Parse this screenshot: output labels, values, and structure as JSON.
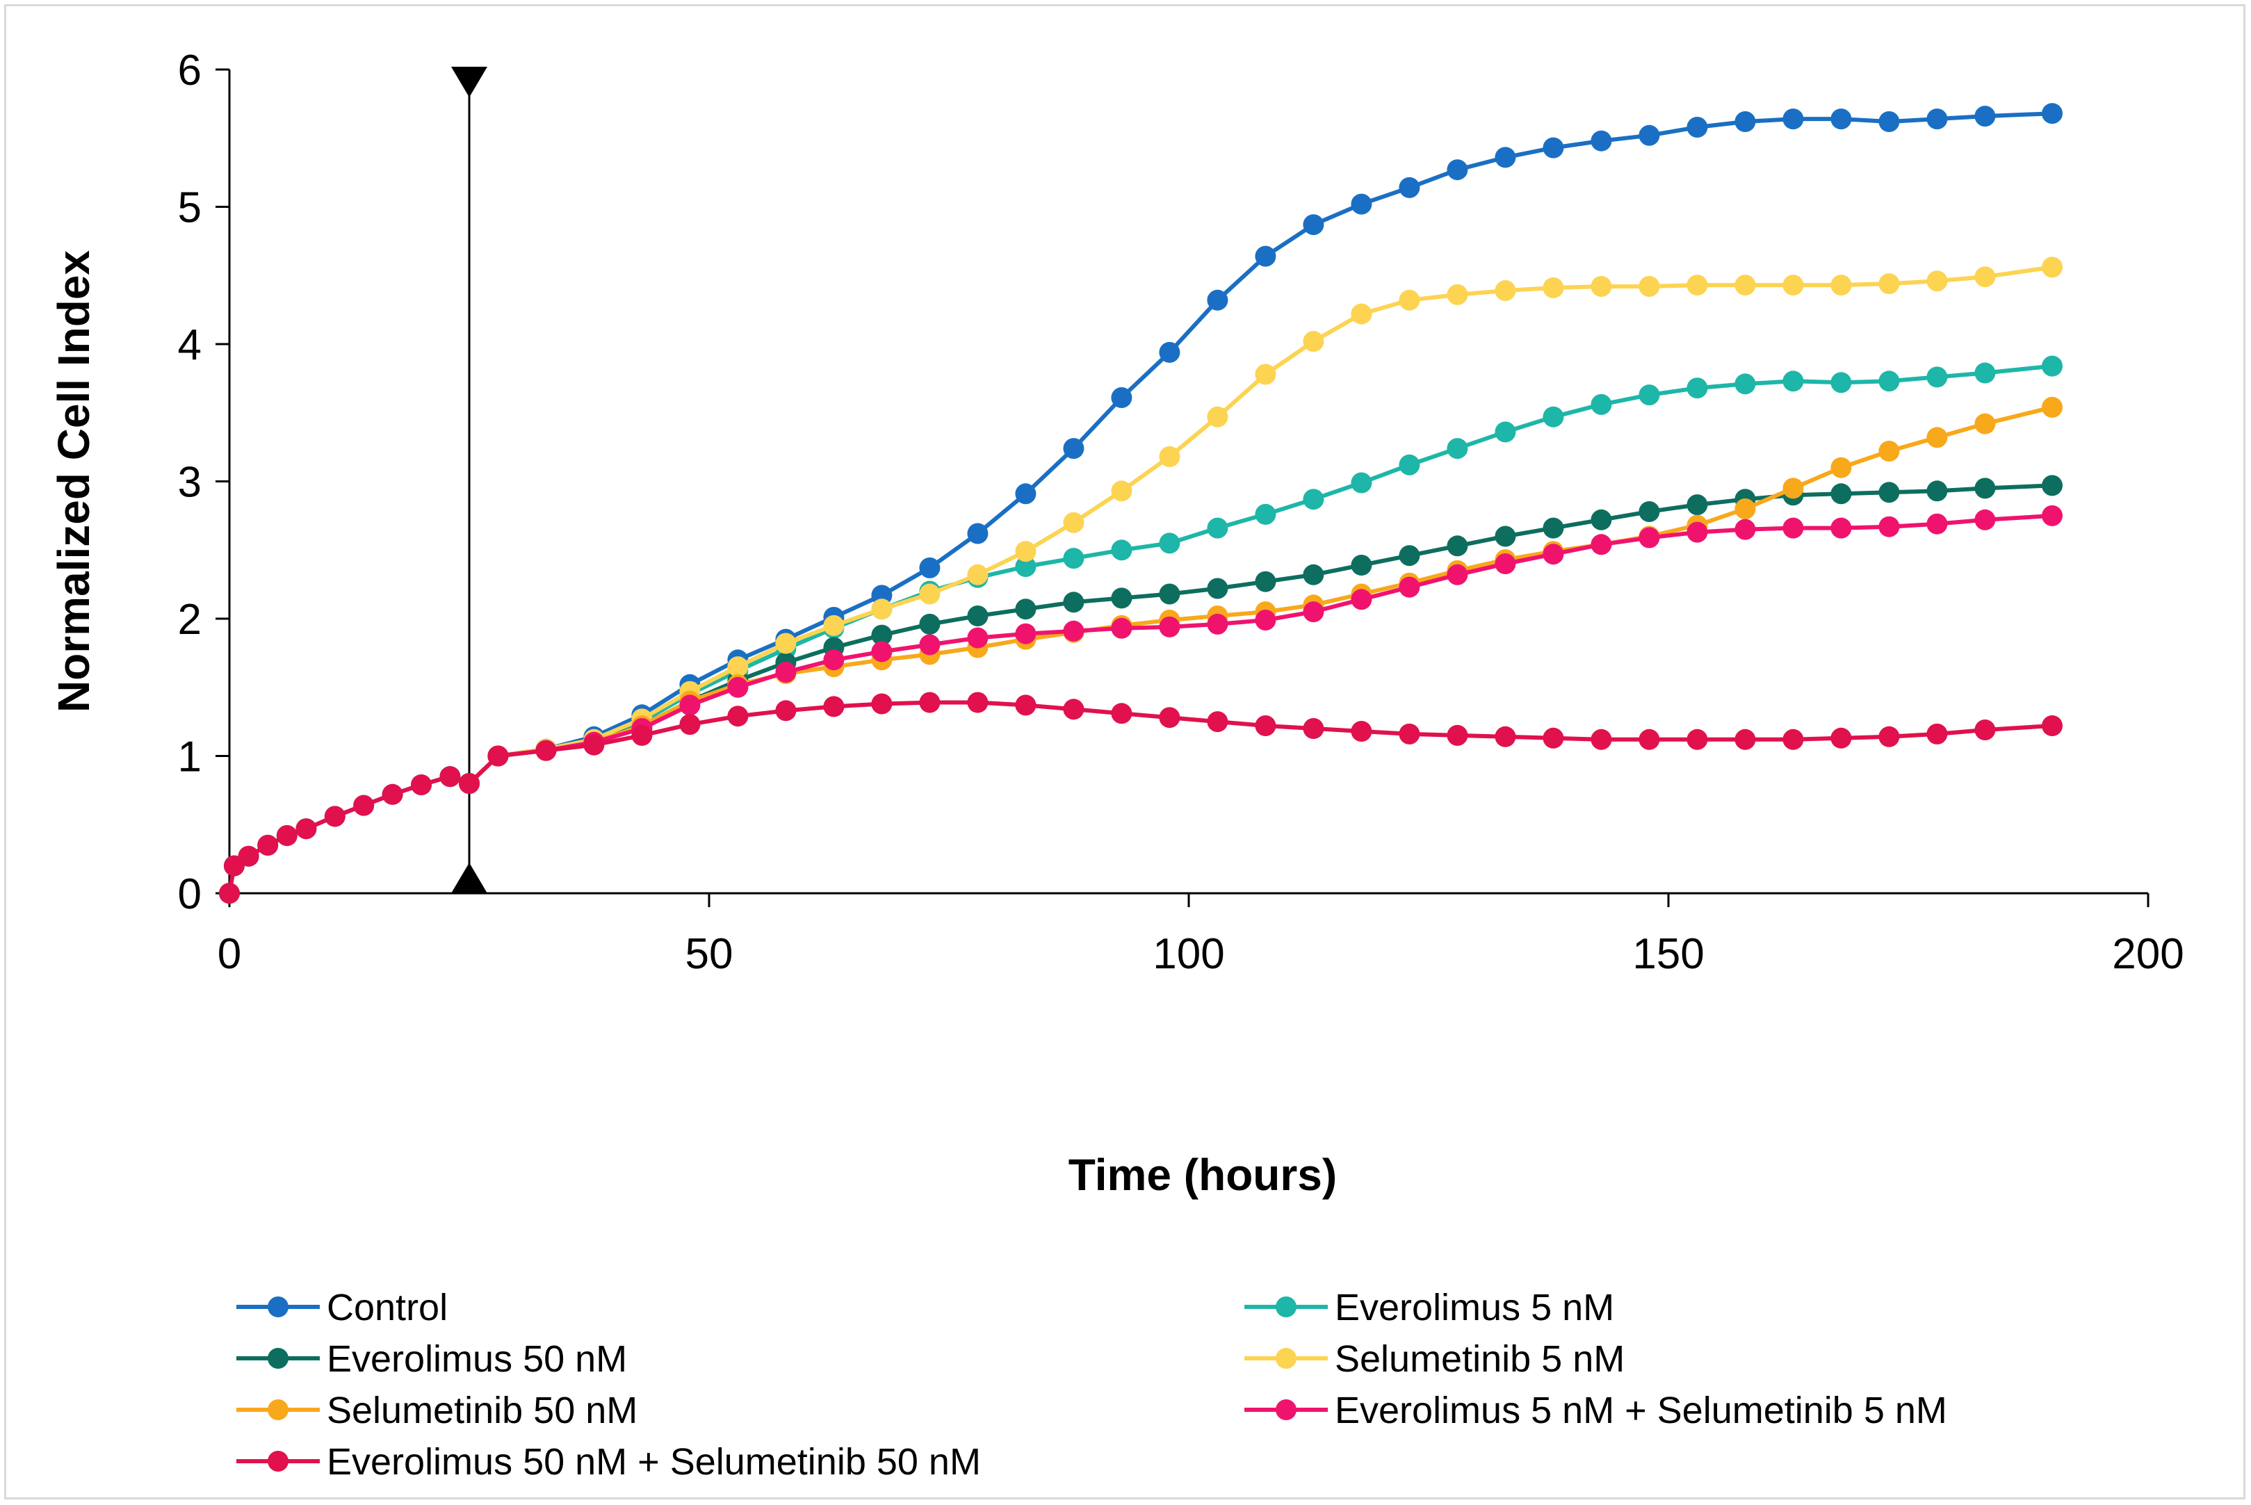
{
  "chart_data": {
    "type": "line",
    "title": "",
    "xlabel": "Time (hours)",
    "ylabel": "Normalized Cell Index",
    "xlim": [
      0,
      200
    ],
    "ylim": [
      0,
      6
    ],
    "xticks": [
      "0",
      "50",
      "100",
      "150",
      "200"
    ],
    "yticks": [
      "0",
      "1",
      "2",
      "3",
      "4",
      "5",
      "6"
    ],
    "xtick_values": [
      0,
      50,
      100,
      150,
      200
    ],
    "ytick_values": [
      0,
      1,
      2,
      3,
      4,
      5,
      6
    ],
    "grid": false,
    "legend_position": "bottom",
    "treatment_marker": {
      "x": 25,
      "label": ""
    },
    "series": [
      {
        "name": "Control",
        "color": "#1a6fc4",
        "points": [
          [
            0,
            0
          ],
          [
            0.5,
            0.2
          ],
          [
            2,
            0.27
          ],
          [
            4,
            0.35
          ],
          [
            6,
            0.42
          ],
          [
            8,
            0.47
          ],
          [
            11,
            0.56
          ],
          [
            14,
            0.64
          ],
          [
            17,
            0.72
          ],
          [
            20,
            0.79
          ],
          [
            23,
            0.85
          ],
          [
            25,
            0.8
          ],
          [
            28,
            1.0
          ],
          [
            33,
            1.05
          ],
          [
            38,
            1.14
          ],
          [
            43,
            1.3
          ],
          [
            48,
            1.52
          ],
          [
            53,
            1.7
          ],
          [
            58,
            1.85
          ],
          [
            63,
            2.01
          ],
          [
            68,
            2.17
          ],
          [
            73,
            2.37
          ],
          [
            78,
            2.62
          ],
          [
            83,
            2.91
          ],
          [
            88,
            3.24
          ],
          [
            93,
            3.61
          ],
          [
            98,
            3.94
          ],
          [
            103,
            4.32
          ],
          [
            108,
            4.64
          ],
          [
            113,
            4.87
          ],
          [
            118,
            5.02
          ],
          [
            123,
            5.14
          ],
          [
            128,
            5.27
          ],
          [
            133,
            5.36
          ],
          [
            138,
            5.43
          ],
          [
            143,
            5.48
          ],
          [
            148,
            5.52
          ],
          [
            153,
            5.58
          ],
          [
            158,
            5.62
          ],
          [
            163,
            5.64
          ],
          [
            168,
            5.64
          ],
          [
            173,
            5.62
          ],
          [
            178,
            5.64
          ],
          [
            183,
            5.66
          ],
          [
            190,
            5.68
          ]
        ]
      },
      {
        "name": "Everolimus 5 nM",
        "color": "#1db6a8",
        "points": [
          [
            25,
            0.8
          ],
          [
            28,
            1.0
          ],
          [
            33,
            1.05
          ],
          [
            38,
            1.12
          ],
          [
            43,
            1.25
          ],
          [
            48,
            1.45
          ],
          [
            53,
            1.62
          ],
          [
            58,
            1.78
          ],
          [
            63,
            1.93
          ],
          [
            68,
            2.07
          ],
          [
            73,
            2.2
          ],
          [
            78,
            2.3
          ],
          [
            83,
            2.38
          ],
          [
            88,
            2.44
          ],
          [
            93,
            2.5
          ],
          [
            98,
            2.55
          ],
          [
            103,
            2.66
          ],
          [
            108,
            2.76
          ],
          [
            113,
            2.87
          ],
          [
            118,
            2.99
          ],
          [
            123,
            3.12
          ],
          [
            128,
            3.24
          ],
          [
            133,
            3.36
          ],
          [
            138,
            3.47
          ],
          [
            143,
            3.56
          ],
          [
            148,
            3.63
          ],
          [
            153,
            3.68
          ],
          [
            158,
            3.71
          ],
          [
            163,
            3.73
          ],
          [
            168,
            3.72
          ],
          [
            173,
            3.73
          ],
          [
            178,
            3.76
          ],
          [
            183,
            3.79
          ],
          [
            190,
            3.84
          ]
        ]
      },
      {
        "name": "Everolimus 50 nM",
        "color": "#0d6e5f",
        "points": [
          [
            25,
            0.8
          ],
          [
            28,
            1.0
          ],
          [
            33,
            1.04
          ],
          [
            38,
            1.11
          ],
          [
            43,
            1.22
          ],
          [
            48,
            1.4
          ],
          [
            53,
            1.55
          ],
          [
            58,
            1.68
          ],
          [
            63,
            1.79
          ],
          [
            68,
            1.88
          ],
          [
            73,
            1.96
          ],
          [
            78,
            2.02
          ],
          [
            83,
            2.07
          ],
          [
            88,
            2.12
          ],
          [
            93,
            2.15
          ],
          [
            98,
            2.18
          ],
          [
            103,
            2.22
          ],
          [
            108,
            2.27
          ],
          [
            113,
            2.32
          ],
          [
            118,
            2.39
          ],
          [
            123,
            2.46
          ],
          [
            128,
            2.53
          ],
          [
            133,
            2.6
          ],
          [
            138,
            2.66
          ],
          [
            143,
            2.72
          ],
          [
            148,
            2.78
          ],
          [
            153,
            2.83
          ],
          [
            158,
            2.87
          ],
          [
            163,
            2.9
          ],
          [
            168,
            2.91
          ],
          [
            173,
            2.92
          ],
          [
            178,
            2.93
          ],
          [
            183,
            2.95
          ],
          [
            190,
            2.97
          ]
        ]
      },
      {
        "name": "Selumetinib 5 nM",
        "color": "#fdd352",
        "points": [
          [
            25,
            0.8
          ],
          [
            28,
            1.0
          ],
          [
            33,
            1.05
          ],
          [
            38,
            1.12
          ],
          [
            43,
            1.27
          ],
          [
            48,
            1.47
          ],
          [
            53,
            1.65
          ],
          [
            58,
            1.82
          ],
          [
            63,
            1.95
          ],
          [
            68,
            2.07
          ],
          [
            73,
            2.18
          ],
          [
            78,
            2.32
          ],
          [
            83,
            2.49
          ],
          [
            88,
            2.7
          ],
          [
            93,
            2.93
          ],
          [
            98,
            3.18
          ],
          [
            103,
            3.47
          ],
          [
            108,
            3.78
          ],
          [
            113,
            4.02
          ],
          [
            118,
            4.22
          ],
          [
            123,
            4.32
          ],
          [
            128,
            4.36
          ],
          [
            133,
            4.39
          ],
          [
            138,
            4.41
          ],
          [
            143,
            4.42
          ],
          [
            148,
            4.42
          ],
          [
            153,
            4.43
          ],
          [
            158,
            4.43
          ],
          [
            163,
            4.43
          ],
          [
            168,
            4.43
          ],
          [
            173,
            4.44
          ],
          [
            178,
            4.46
          ],
          [
            183,
            4.49
          ],
          [
            190,
            4.56
          ]
        ]
      },
      {
        "name": "Selumetinib 50 nM",
        "color": "#f8a81b",
        "points": [
          [
            25,
            0.8
          ],
          [
            28,
            1.0
          ],
          [
            33,
            1.04
          ],
          [
            38,
            1.1
          ],
          [
            43,
            1.22
          ],
          [
            48,
            1.4
          ],
          [
            53,
            1.52
          ],
          [
            58,
            1.6
          ],
          [
            63,
            1.65
          ],
          [
            68,
            1.7
          ],
          [
            73,
            1.74
          ],
          [
            78,
            1.79
          ],
          [
            83,
            1.85
          ],
          [
            88,
            1.9
          ],
          [
            93,
            1.95
          ],
          [
            98,
            1.99
          ],
          [
            103,
            2.02
          ],
          [
            108,
            2.05
          ],
          [
            113,
            2.1
          ],
          [
            118,
            2.18
          ],
          [
            123,
            2.26
          ],
          [
            128,
            2.35
          ],
          [
            133,
            2.43
          ],
          [
            138,
            2.49
          ],
          [
            143,
            2.54
          ],
          [
            148,
            2.6
          ],
          [
            153,
            2.68
          ],
          [
            158,
            2.8
          ],
          [
            163,
            2.95
          ],
          [
            168,
            3.1
          ],
          [
            173,
            3.22
          ],
          [
            178,
            3.32
          ],
          [
            183,
            3.42
          ],
          [
            190,
            3.54
          ]
        ]
      },
      {
        "name": "Everolimus 5 nM + Selumetinib 5 nM",
        "color": "#f0136e",
        "points": [
          [
            25,
            0.8
          ],
          [
            28,
            1.0
          ],
          [
            33,
            1.04
          ],
          [
            38,
            1.1
          ],
          [
            43,
            1.2
          ],
          [
            48,
            1.37
          ],
          [
            53,
            1.5
          ],
          [
            58,
            1.61
          ],
          [
            63,
            1.7
          ],
          [
            68,
            1.76
          ],
          [
            73,
            1.81
          ],
          [
            78,
            1.86
          ],
          [
            83,
            1.89
          ],
          [
            88,
            1.91
          ],
          [
            93,
            1.93
          ],
          [
            98,
            1.94
          ],
          [
            103,
            1.96
          ],
          [
            108,
            1.99
          ],
          [
            113,
            2.05
          ],
          [
            118,
            2.14
          ],
          [
            123,
            2.23
          ],
          [
            128,
            2.32
          ],
          [
            133,
            2.4
          ],
          [
            138,
            2.47
          ],
          [
            143,
            2.54
          ],
          [
            148,
            2.59
          ],
          [
            153,
            2.63
          ],
          [
            158,
            2.65
          ],
          [
            163,
            2.66
          ],
          [
            168,
            2.66
          ],
          [
            173,
            2.67
          ],
          [
            178,
            2.69
          ],
          [
            183,
            2.72
          ],
          [
            190,
            2.75
          ]
        ]
      },
      {
        "name": "Everolimus 50 nM + Selumetinib 50 nM",
        "color": "#e0114d",
        "points": [
          [
            0,
            0
          ],
          [
            0.5,
            0.2
          ],
          [
            2,
            0.27
          ],
          [
            4,
            0.35
          ],
          [
            6,
            0.42
          ],
          [
            8,
            0.47
          ],
          [
            11,
            0.56
          ],
          [
            14,
            0.64
          ],
          [
            17,
            0.72
          ],
          [
            20,
            0.79
          ],
          [
            23,
            0.85
          ],
          [
            25,
            0.8
          ],
          [
            28,
            1.0
          ],
          [
            33,
            1.04
          ],
          [
            38,
            1.08
          ],
          [
            43,
            1.15
          ],
          [
            48,
            1.23
          ],
          [
            53,
            1.29
          ],
          [
            58,
            1.33
          ],
          [
            63,
            1.36
          ],
          [
            68,
            1.38
          ],
          [
            73,
            1.39
          ],
          [
            78,
            1.39
          ],
          [
            83,
            1.37
          ],
          [
            88,
            1.34
          ],
          [
            93,
            1.31
          ],
          [
            98,
            1.28
          ],
          [
            103,
            1.25
          ],
          [
            108,
            1.22
          ],
          [
            113,
            1.2
          ],
          [
            118,
            1.18
          ],
          [
            123,
            1.16
          ],
          [
            128,
            1.15
          ],
          [
            133,
            1.14
          ],
          [
            138,
            1.13
          ],
          [
            143,
            1.12
          ],
          [
            148,
            1.12
          ],
          [
            153,
            1.12
          ],
          [
            158,
            1.12
          ],
          [
            163,
            1.12
          ],
          [
            168,
            1.13
          ],
          [
            173,
            1.14
          ],
          [
            178,
            1.16
          ],
          [
            183,
            1.19
          ],
          [
            190,
            1.22
          ]
        ]
      }
    ]
  }
}
